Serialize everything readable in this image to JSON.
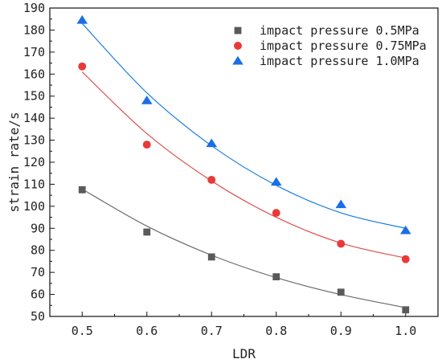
{
  "chart_data": {
    "type": "scatter",
    "title": "",
    "xlabel": "LDR",
    "ylabel": "strain rate/s",
    "xlim": [
      0.45,
      1.05
    ],
    "ylim": [
      50,
      190
    ],
    "xticks": [
      0.5,
      0.6,
      0.7,
      0.8,
      0.9,
      1.0
    ],
    "xtick_labels": [
      "0.5",
      "0.6",
      "0.7",
      "0.8",
      "0.9",
      "1.0"
    ],
    "yticks": [
      50,
      60,
      70,
      80,
      90,
      100,
      110,
      120,
      130,
      140,
      150,
      160,
      170,
      180,
      190
    ],
    "grid": false,
    "legend_position": "top-right",
    "series": [
      {
        "name": "impact pressure 0.5MPa",
        "marker": "square",
        "marker_color": "#5a5a5a",
        "fit_color": "#6b6b6b",
        "x": [
          0.5,
          0.6,
          0.7,
          0.8,
          0.9,
          1.0
        ],
        "y": [
          107.5,
          88.3,
          77.0,
          68.0,
          61.0,
          53.0
        ],
        "fit_y": [
          107.8,
          91.0,
          77.8,
          67.6,
          59.9,
          54.0
        ]
      },
      {
        "name": "impact pressure 0.75MPa",
        "marker": "circle",
        "marker_color": "#e83a3a",
        "fit_color": "#e05050",
        "x": [
          0.5,
          0.6,
          0.7,
          0.8,
          0.9,
          1.0
        ],
        "y": [
          163.5,
          128.0,
          112.0,
          97.0,
          83.0,
          76.0
        ],
        "fit_y": [
          161.0,
          133.0,
          111.5,
          95.0,
          83.3,
          76.5
        ]
      },
      {
        "name": "impact pressure 1.0MPa",
        "marker": "triangle",
        "marker_color": "#1a6ee6",
        "fit_color": "#1a7fe0",
        "x": [
          0.5,
          0.6,
          0.7,
          0.8,
          0.9,
          1.0
        ],
        "y": [
          184.5,
          148.0,
          128.5,
          111.0,
          100.8,
          89.0
        ],
        "fit_y": [
          183.0,
          151.5,
          127.5,
          109.5,
          97.0,
          90.0
        ]
      }
    ]
  }
}
